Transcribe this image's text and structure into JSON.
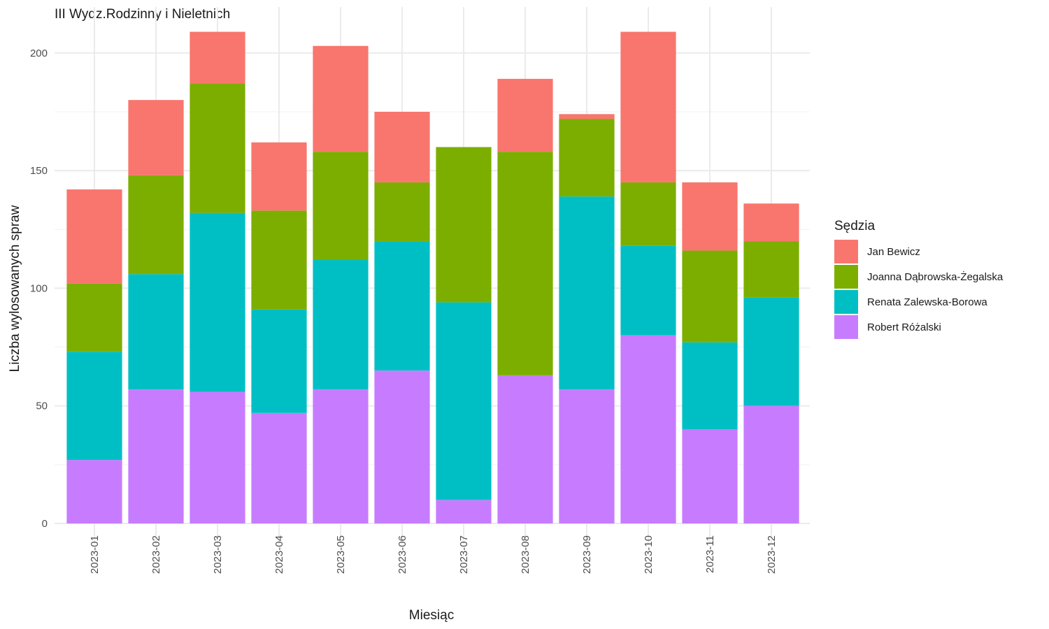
{
  "chart_data": {
    "type": "bar",
    "stacked": true,
    "title": "III Wydz.Rodzinny i Nieletnich",
    "xlabel": "Miesiąc",
    "ylabel": "Liczba wylosowanych spraw",
    "ylim": [
      0,
      210
    ],
    "yticks": [
      0,
      50,
      100,
      150,
      200
    ],
    "grid": true,
    "legend_title": "Sędzia",
    "legend_position": "right",
    "categories": [
      "2023-01",
      "2023-02",
      "2023-03",
      "2023-04",
      "2023-05",
      "2023-06",
      "2023-07",
      "2023-08",
      "2023-09",
      "2023-10",
      "2023-11",
      "2023-12"
    ],
    "series": [
      {
        "name": "Jan Bewicz",
        "color": "#F8766D",
        "values": [
          40,
          32,
          22,
          29,
          45,
          30,
          0,
          31,
          2,
          64,
          29,
          16
        ]
      },
      {
        "name": "Joanna Dąbrowska-Żegalska",
        "color": "#7CAE00",
        "values": [
          29,
          42,
          55,
          42,
          46,
          25,
          66,
          95,
          33,
          27,
          39,
          24
        ]
      },
      {
        "name": "Renata Zalewska-Borowa",
        "color": "#00BFC4",
        "values": [
          46,
          49,
          76,
          44,
          55,
          55,
          84,
          0,
          82,
          38,
          37,
          46
        ]
      },
      {
        "name": "Robert Różalski",
        "color": "#C77CFF",
        "values": [
          27,
          57,
          56,
          47,
          57,
          65,
          10,
          63,
          57,
          80,
          40,
          50
        ]
      }
    ]
  }
}
